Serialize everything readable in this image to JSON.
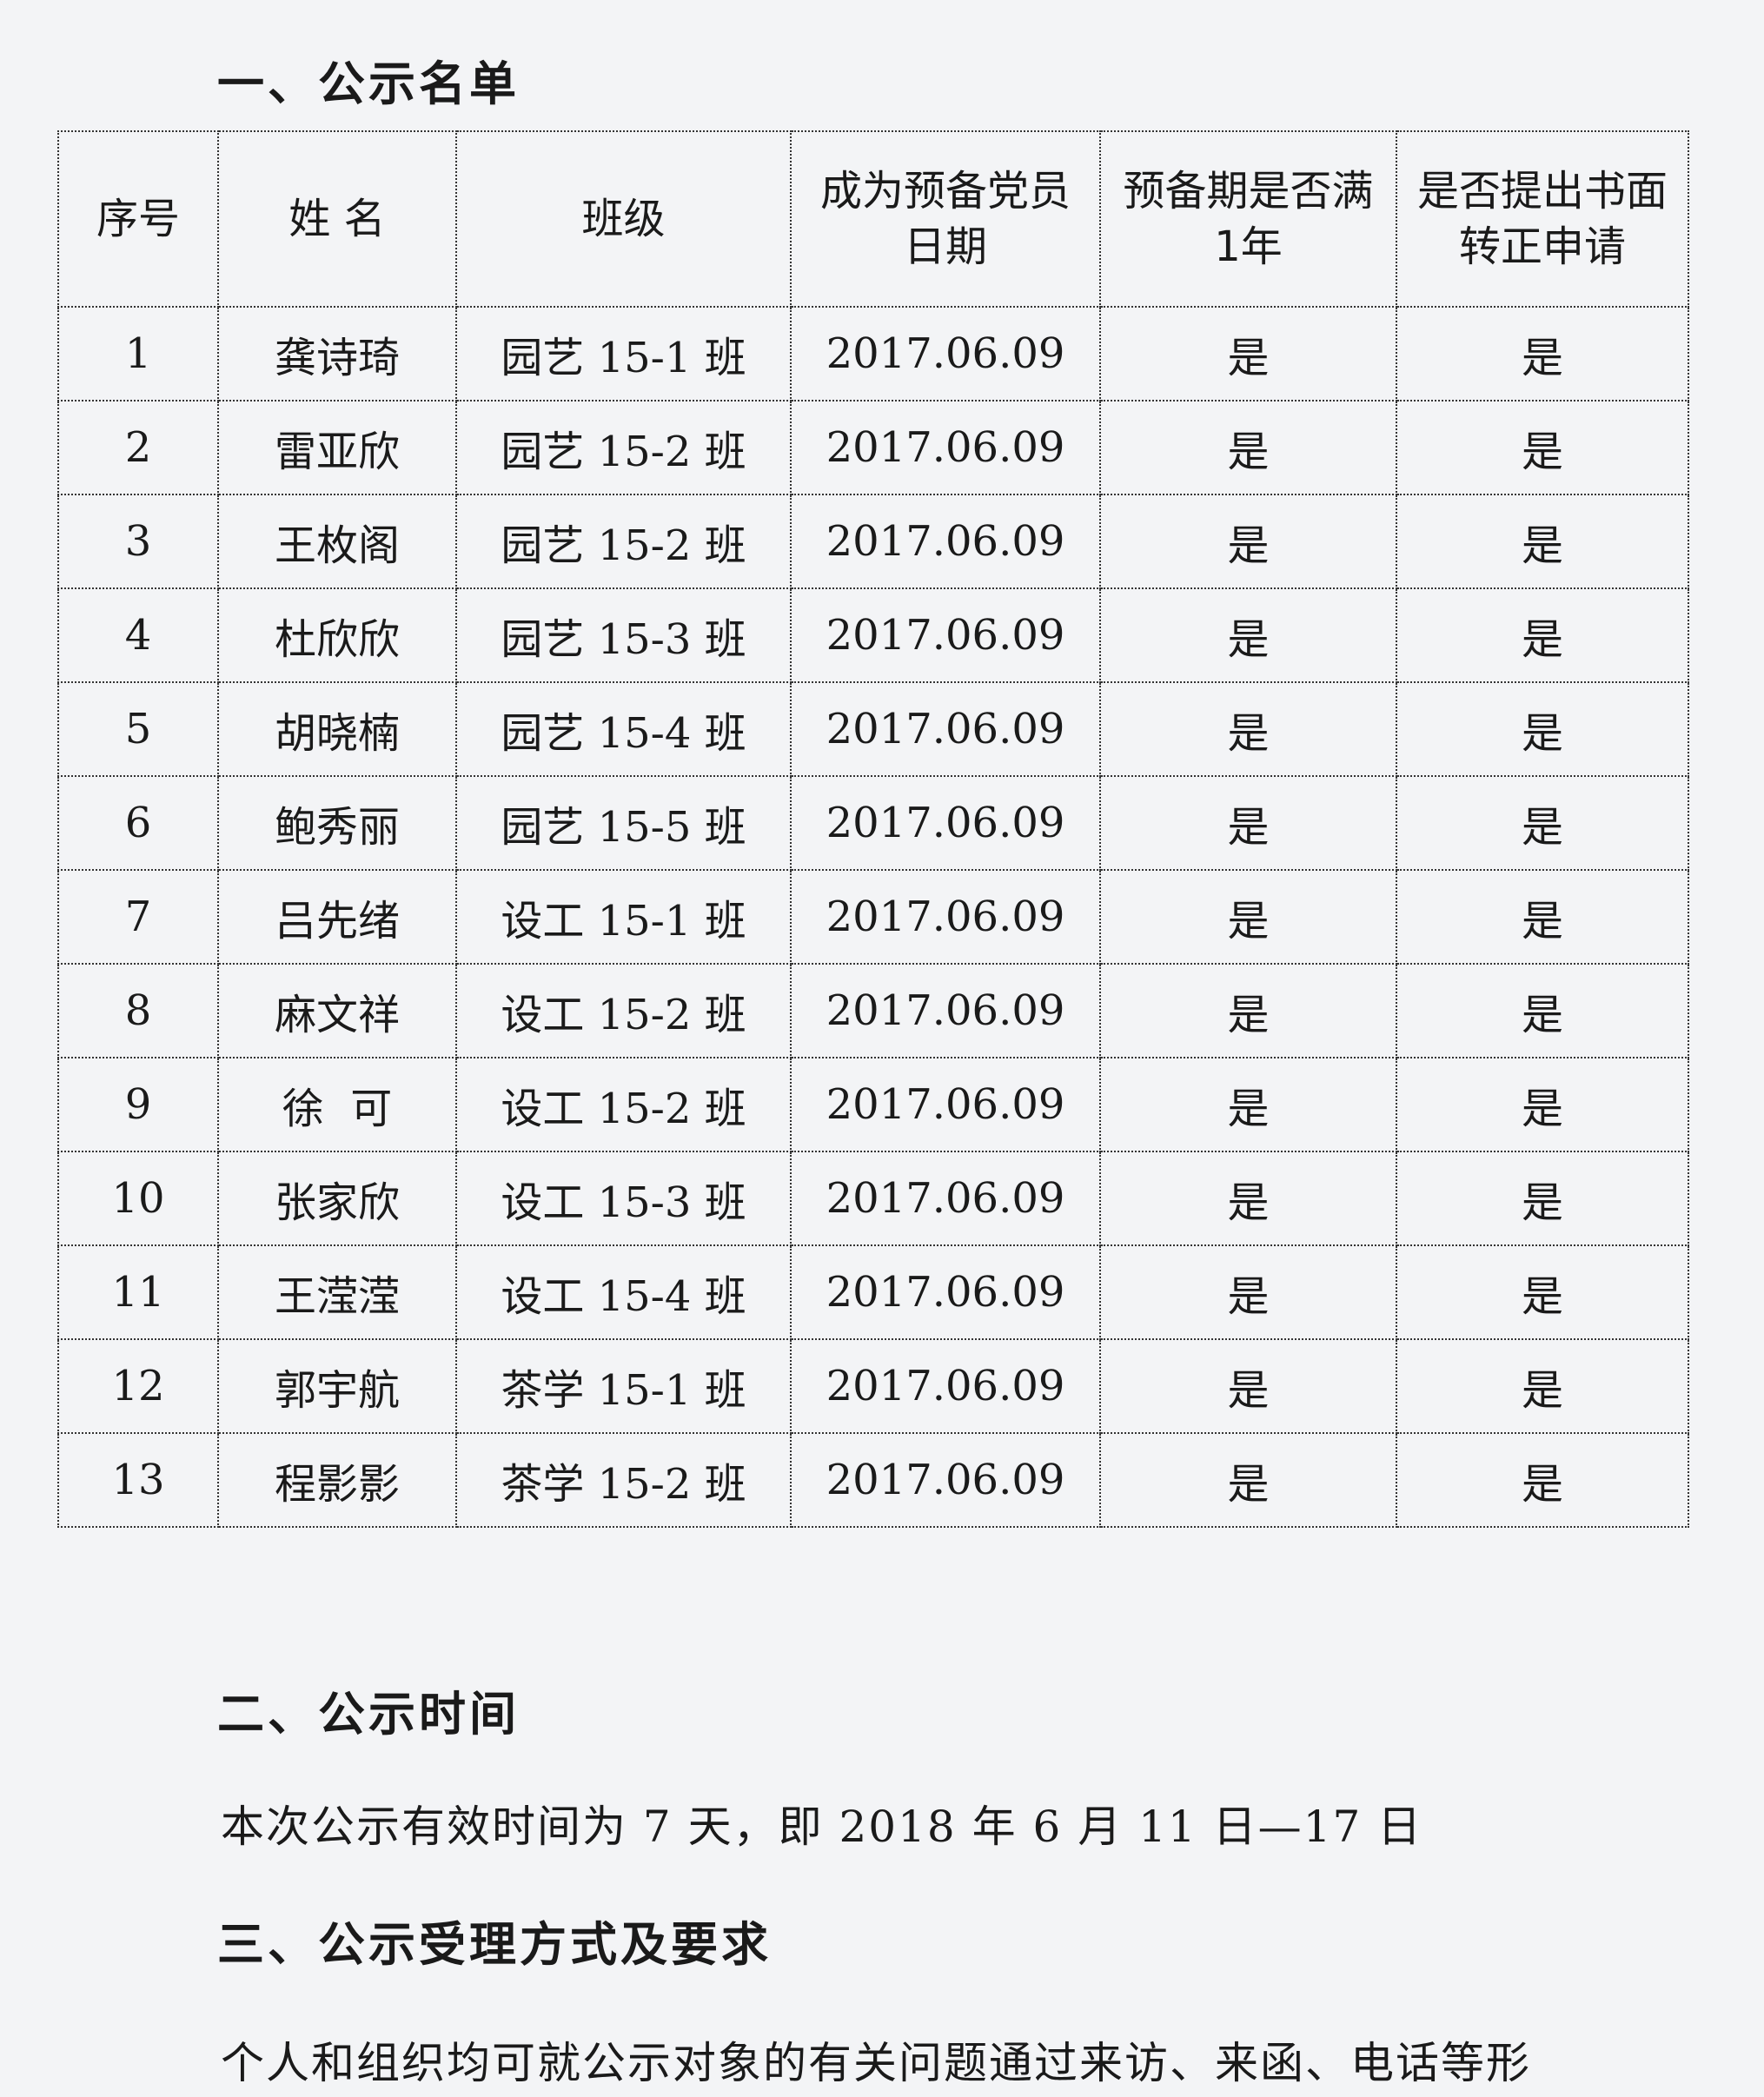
{
  "section1": {
    "title": "一、公示名单"
  },
  "table": {
    "headers": [
      "序号",
      "姓  名",
      "班级",
      "成为预备党员\n日期",
      "预备期是否满\n1年",
      "是否提出书面\n转正申请"
    ],
    "rows": [
      [
        "1",
        "龚诗琦",
        "园艺 15-1 班",
        "2017.06.09",
        "是",
        "是"
      ],
      [
        "2",
        "雷亚欣",
        "园艺 15-2 班",
        "2017.06.09",
        "是",
        "是"
      ],
      [
        "3",
        "王枚阁",
        "园艺 15-2 班",
        "2017.06.09",
        "是",
        "是"
      ],
      [
        "4",
        "杜欣欣",
        "园艺 15-3 班",
        "2017.06.09",
        "是",
        "是"
      ],
      [
        "5",
        "胡晓楠",
        "园艺 15-4 班",
        "2017.06.09",
        "是",
        "是"
      ],
      [
        "6",
        "鲍秀丽",
        "园艺 15-5 班",
        "2017.06.09",
        "是",
        "是"
      ],
      [
        "7",
        "吕先绪",
        "设工 15-1 班",
        "2017.06.09",
        "是",
        "是"
      ],
      [
        "8",
        "麻文祥",
        "设工 15-2 班",
        "2017.06.09",
        "是",
        "是"
      ],
      [
        "9",
        "徐  可",
        "设工 15-2 班",
        "2017.06.09",
        "是",
        "是"
      ],
      [
        "10",
        "张家欣",
        "设工 15-3 班",
        "2017.06.09",
        "是",
        "是"
      ],
      [
        "11",
        "王滢滢",
        "设工 15-4 班",
        "2017.06.09",
        "是",
        "是"
      ],
      [
        "12",
        "郭宇航",
        "茶学 15-1 班",
        "2017.06.09",
        "是",
        "是"
      ],
      [
        "13",
        "程影影",
        "茶学 15-2 班",
        "2017.06.09",
        "是",
        "是"
      ]
    ]
  },
  "section2": {
    "title": "二、公示时间",
    "text": "本次公示有效时间为 7 天，即 2018 年 6 月 11 日—17 日"
  },
  "section3": {
    "title": "三、公示受理方式及要求",
    "text": "个人和组织均可就公示对象的有关问题通过来访、来函、电话等形"
  }
}
